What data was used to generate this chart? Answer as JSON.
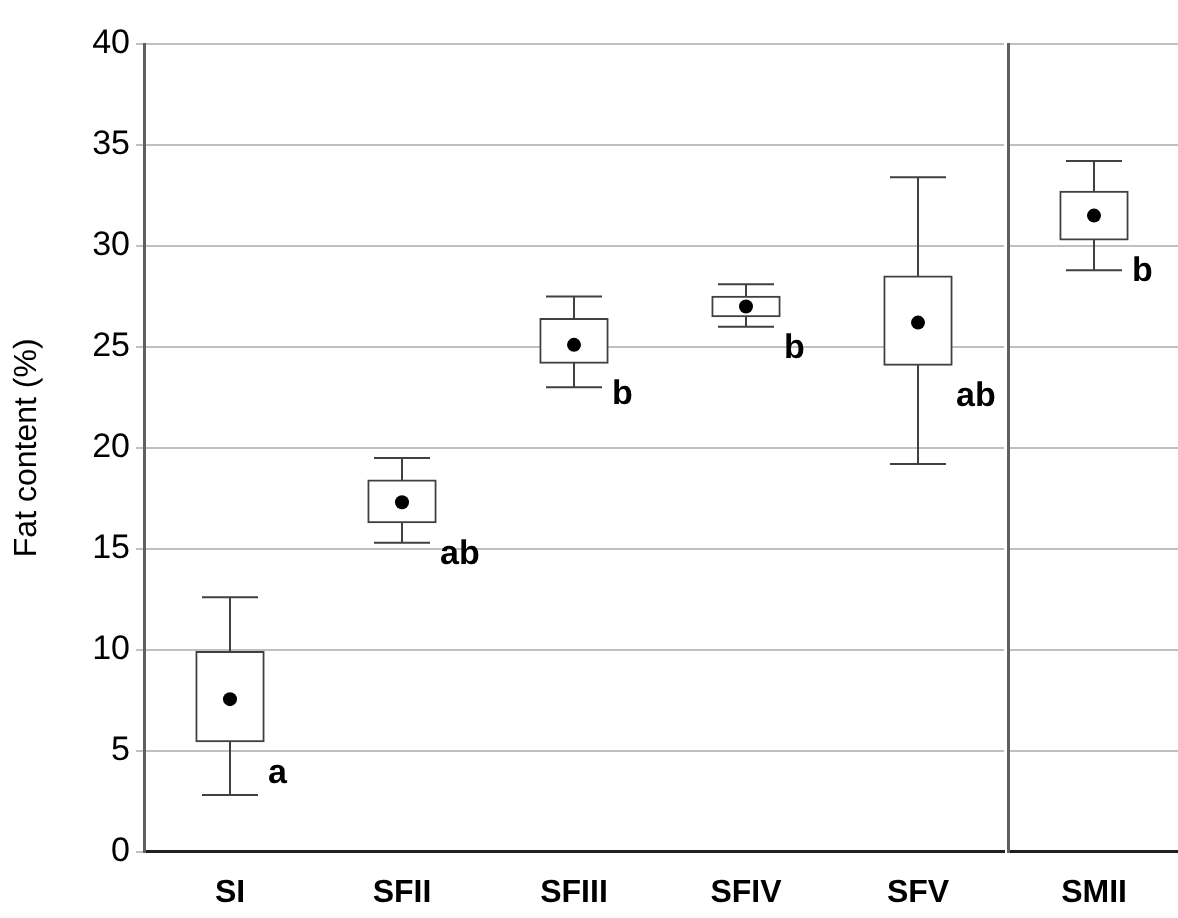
{
  "chart_data": [
    {
      "type": "box",
      "ylabel": "Fat content (%)",
      "categories": [
        "SI",
        "SFII",
        "SFIII",
        "SFIV",
        "SFV"
      ],
      "color": "#404040",
      "boxes": [
        {
          "low": 2.8,
          "q1": 5.45,
          "median": 7.55,
          "q3": 9.9,
          "high": 12.6
        },
        {
          "low": 15.3,
          "q1": 16.3,
          "median": 17.3,
          "q3": 18.4,
          "high": 19.5
        },
        {
          "low": 23.0,
          "q1": 24.2,
          "median": 25.1,
          "q3": 26.4,
          "high": 27.5
        },
        {
          "low": 26.0,
          "q1": 26.5,
          "median": 27.0,
          "q3": 27.5,
          "high": 28.1
        },
        {
          "low": 19.2,
          "q1": 24.1,
          "median": 26.2,
          "q3": 28.5,
          "high": 33.4
        }
      ],
      "ylim": [
        0,
        40
      ],
      "yticks": [
        0,
        5,
        10,
        15,
        20,
        25,
        30,
        35,
        40
      ],
      "grid": "y",
      "annotations": [
        "a",
        "ab",
        "b",
        "b",
        "ab"
      ]
    },
    {
      "type": "box",
      "categories": [
        "SMII"
      ],
      "color": "#404040",
      "boxes": [
        {
          "low": 28.8,
          "q1": 30.3,
          "median": 31.5,
          "q3": 32.7,
          "high": 34.2
        }
      ],
      "ylim": [
        0,
        40
      ],
      "yticks": [
        0,
        5,
        10,
        15,
        20,
        25,
        30,
        35,
        40
      ],
      "grid": "y",
      "tick_labels": "x",
      "annotations": [
        "b"
      ]
    }
  ]
}
